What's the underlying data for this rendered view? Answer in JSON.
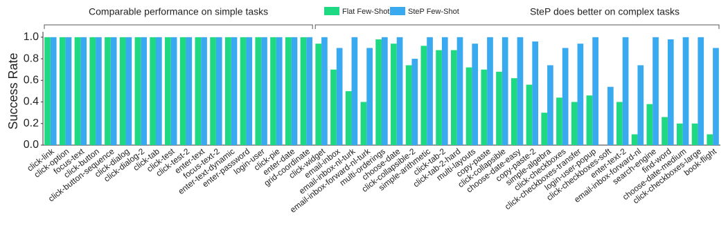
{
  "chart_data": {
    "type": "bar",
    "y_label": "Success Rate",
    "categories": [
      "click-link",
      "click-option",
      "focus-text",
      "click-button",
      "click-button-sequence",
      "click-dialog",
      "click-dialog-2",
      "click-tab",
      "click-test",
      "click-test-2",
      "enter-text",
      "focus-text-2",
      "enter-text-dynamic",
      "enter-password",
      "login-user",
      "click-pie",
      "enter-date",
      "grid-coordinate",
      "click-widget",
      "email-inbox",
      "email-inbox-nl-turk",
      "email-inbox-forward-nl-turk",
      "multi-orderings",
      "choose-date",
      "click-collapsible-2",
      "simple-arithmetic",
      "click-tab-2",
      "click-tab-2-hard",
      "multi-layouts",
      "copy-paste",
      "click-collapsible",
      "choose-date-easy",
      "copy-paste-2",
      "simple-algebra",
      "click-checkboxes",
      "click-checkboxes-transfer",
      "login-user-popup",
      "click-checkboxes-soft",
      "enter-text-2",
      "email-inbox-forward-nl",
      "search-engine",
      "find-word",
      "choose-date-medium",
      "click-checkboxes-large",
      "book-flight"
    ],
    "series": [
      {
        "name": "Flat Few-Shot",
        "color": "#1fd982",
        "values": [
          1.0,
          1.0,
          1.0,
          1.0,
          1.0,
          1.0,
          1.0,
          1.0,
          1.0,
          1.0,
          1.0,
          1.0,
          1.0,
          1.0,
          1.0,
          1.0,
          1.0,
          1.0,
          0.94,
          0.7,
          0.5,
          0.4,
          0.98,
          0.94,
          0.74,
          0.92,
          0.88,
          0.88,
          0.72,
          0.7,
          0.68,
          0.62,
          0.56,
          0.3,
          0.44,
          0.4,
          0.46,
          0.0,
          0.4,
          0.1,
          0.38,
          0.26,
          0.2,
          0.2,
          0.1
        ]
      },
      {
        "name": "SteP Few-Shot",
        "color": "#3aaaf0",
        "values": [
          1.0,
          1.0,
          1.0,
          1.0,
          1.0,
          1.0,
          1.0,
          1.0,
          1.0,
          1.0,
          1.0,
          1.0,
          1.0,
          1.0,
          1.0,
          1.0,
          1.0,
          1.0,
          1.0,
          0.9,
          1.0,
          0.9,
          1.0,
          1.0,
          0.8,
          1.0,
          1.0,
          1.0,
          0.94,
          1.0,
          1.0,
          1.0,
          0.96,
          0.74,
          0.9,
          0.94,
          1.0,
          0.54,
          1.0,
          0.74,
          1.0,
          0.98,
          1.0,
          1.0,
          0.9
        ]
      }
    ],
    "ylim": [
      0,
      1.05
    ],
    "yticks": [
      {
        "value": 0,
        "label": "0.0"
      },
      0.2,
      0.4,
      0.6,
      0.8,
      {
        "value": 1,
        "label": "1.0"
      }
    ],
    "annotations": [
      {
        "text": "Comparable performance on simple tasks",
        "from": 0,
        "to": 17
      },
      {
        "text": "SteP does better on complex tasks",
        "from": 18,
        "to": 44
      }
    ]
  }
}
